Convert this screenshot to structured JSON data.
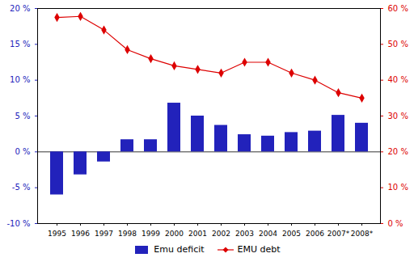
{
  "chart_data": {
    "type": "bar",
    "categories": [
      "1995",
      "1996",
      "1997",
      "1998",
      "1999",
      "2000",
      "2001",
      "2002",
      "2003",
      "2004",
      "2005",
      "2006",
      "2007*",
      "2008*"
    ],
    "series": [
      {
        "name": "Emu deficit",
        "type": "bar",
        "color": "#2222bb",
        "values": [
          -6.0,
          -3.2,
          -1.4,
          1.7,
          1.7,
          6.8,
          5.0,
          3.7,
          2.4,
          2.2,
          2.7,
          2.9,
          5.1,
          4.0
        ]
      },
      {
        "name": "EMU debt",
        "type": "line",
        "axis": "y2",
        "color": "#dd0000",
        "marker": "diamond",
        "values": [
          57.5,
          57.8,
          54.0,
          48.5,
          46.0,
          44.0,
          43.0,
          42.0,
          45.0,
          45.0,
          42.0,
          40.0,
          36.5,
          35.0
        ]
      }
    ],
    "ylim": [
      -10,
      20
    ],
    "yticks": [
      {
        "value": -10,
        "label": "-10 %"
      },
      {
        "value": -5,
        "label": "-5 %"
      },
      {
        "value": 0,
        "label": "0 %"
      },
      {
        "value": 5,
        "label": "5 %"
      },
      {
        "value": 10,
        "label": "10 %"
      },
      {
        "value": 15,
        "label": "15 %"
      },
      {
        "value": 20,
        "label": "20 %"
      }
    ],
    "y2lim": [
      0,
      60
    ],
    "y2ticks": [
      {
        "value": 0,
        "label": "0 %"
      },
      {
        "value": 10,
        "label": "10 %"
      },
      {
        "value": 20,
        "label": "20 %"
      },
      {
        "value": 30,
        "label": "30 %"
      },
      {
        "value": 40,
        "label": "40 %"
      },
      {
        "value": 50,
        "label": "50 %"
      },
      {
        "value": 60,
        "label": "60 %"
      }
    ],
    "legend": "bottom",
    "grid": false
  }
}
